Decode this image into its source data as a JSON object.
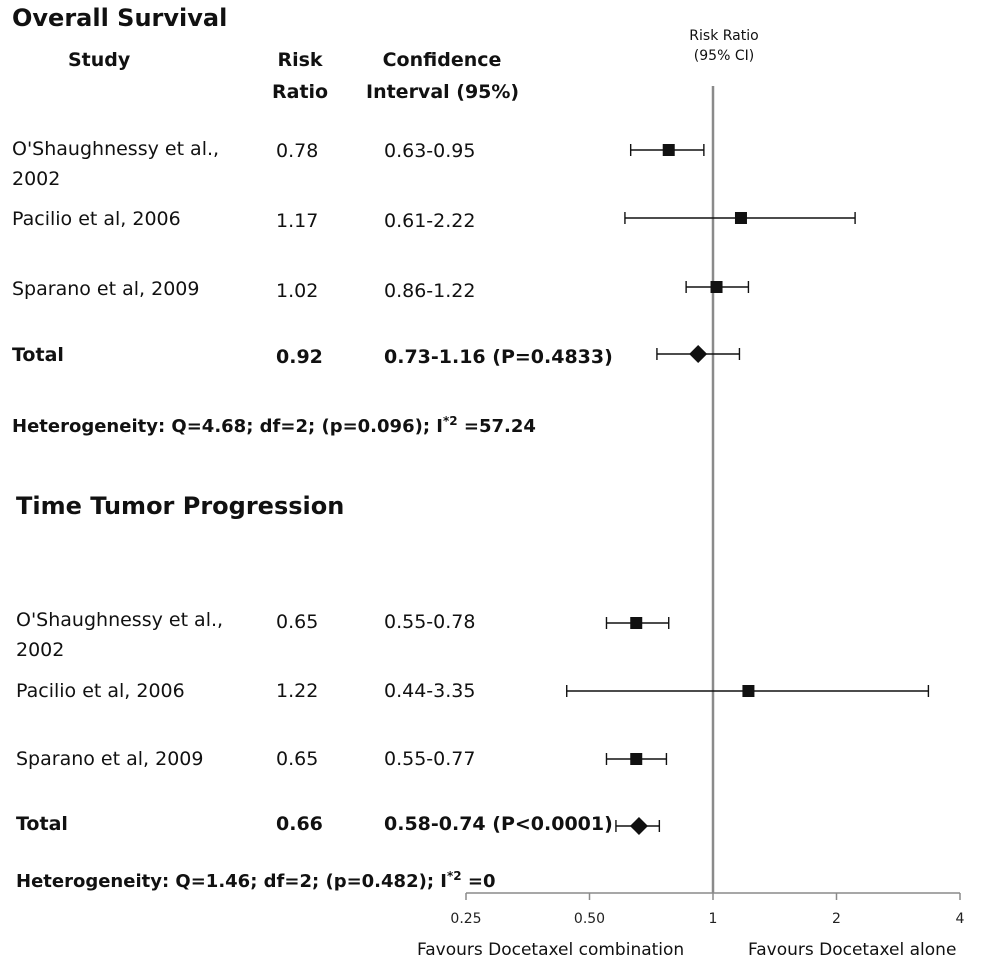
{
  "sections": [
    {
      "title": "Overall Survival",
      "columns": {
        "study": "Study",
        "rr_line1": "Risk",
        "rr_line2": "Ratio",
        "ci_line1": "Confidence",
        "ci_line2": "Interval (95%)"
      },
      "rows": [
        {
          "study": [
            "O'Shaughnessy et al.,",
            "2002"
          ],
          "rr": "0.78",
          "ci": "0.63-0.95"
        },
        {
          "study": [
            "Pacilio et al, 2006"
          ],
          "rr": "1.17",
          "ci": "0.61-2.22"
        },
        {
          "study": [
            "Sparano et al, 2009"
          ],
          "rr": "1.02",
          "ci": "0.86-1.22"
        }
      ],
      "total": {
        "label": "Total",
        "rr": "0.92",
        "ci": "0.73-1.16 (P=0.4833)"
      },
      "heterogeneity": {
        "text": "Heterogeneity:  Q=4.68;  df=2;  (p=0.096);  I",
        "sup": "*2",
        "tail": " =57.24"
      }
    },
    {
      "title": "Time Tumor Progression",
      "rows": [
        {
          "study": [
            "O'Shaughnessy et al.,",
            "2002"
          ],
          "rr": "0.65",
          "ci": "0.55-0.78"
        },
        {
          "study": [
            "Pacilio  et al, 2006"
          ],
          "rr": "1.22",
          "ci": "0.44-3.35"
        },
        {
          "study": [
            "Sparano  et al, 2009"
          ],
          "rr": "0.65",
          "ci": "0.55-0.77"
        }
      ],
      "total": {
        "label": "Total",
        "rr": "0.66",
        "ci": "0.58-0.74  (P<0.0001)"
      },
      "heterogeneity": {
        "text": "Heterogeneity:  Q=1.46;  df=2;  (p=0.482);  I",
        "sup": "*2",
        "tail": " =0"
      }
    }
  ],
  "chart_data": {
    "type": "forest",
    "axis_header": [
      "Risk Ratio",
      "(95% CI)"
    ],
    "x_scale": "log2",
    "xlim": [
      0.25,
      4
    ],
    "x_ticks": [
      "0.25",
      "0.50",
      "1",
      "2",
      "4"
    ],
    "reference_line": 1,
    "favours_left": "Favours  Docetaxel combination",
    "favours_right": "Favours  Docetaxel alone",
    "series": [
      {
        "name": "Overall Survival",
        "points": [
          {
            "rr": 0.78,
            "lo": 0.63,
            "hi": 0.95,
            "marker": "square"
          },
          {
            "rr": 1.17,
            "lo": 0.61,
            "hi": 2.22,
            "marker": "square"
          },
          {
            "rr": 1.02,
            "lo": 0.86,
            "hi": 1.22,
            "marker": "square"
          },
          {
            "rr": 0.92,
            "lo": 0.73,
            "hi": 1.16,
            "marker": "diamond"
          }
        ]
      },
      {
        "name": "Time Tumor Progression",
        "points": [
          {
            "rr": 0.65,
            "lo": 0.55,
            "hi": 0.78,
            "marker": "square"
          },
          {
            "rr": 1.22,
            "lo": 0.44,
            "hi": 3.35,
            "marker": "square"
          },
          {
            "rr": 0.65,
            "lo": 0.55,
            "hi": 0.77,
            "marker": "square"
          },
          {
            "rr": 0.66,
            "lo": 0.58,
            "hi": 0.74,
            "marker": "diamond"
          }
        ]
      }
    ]
  }
}
